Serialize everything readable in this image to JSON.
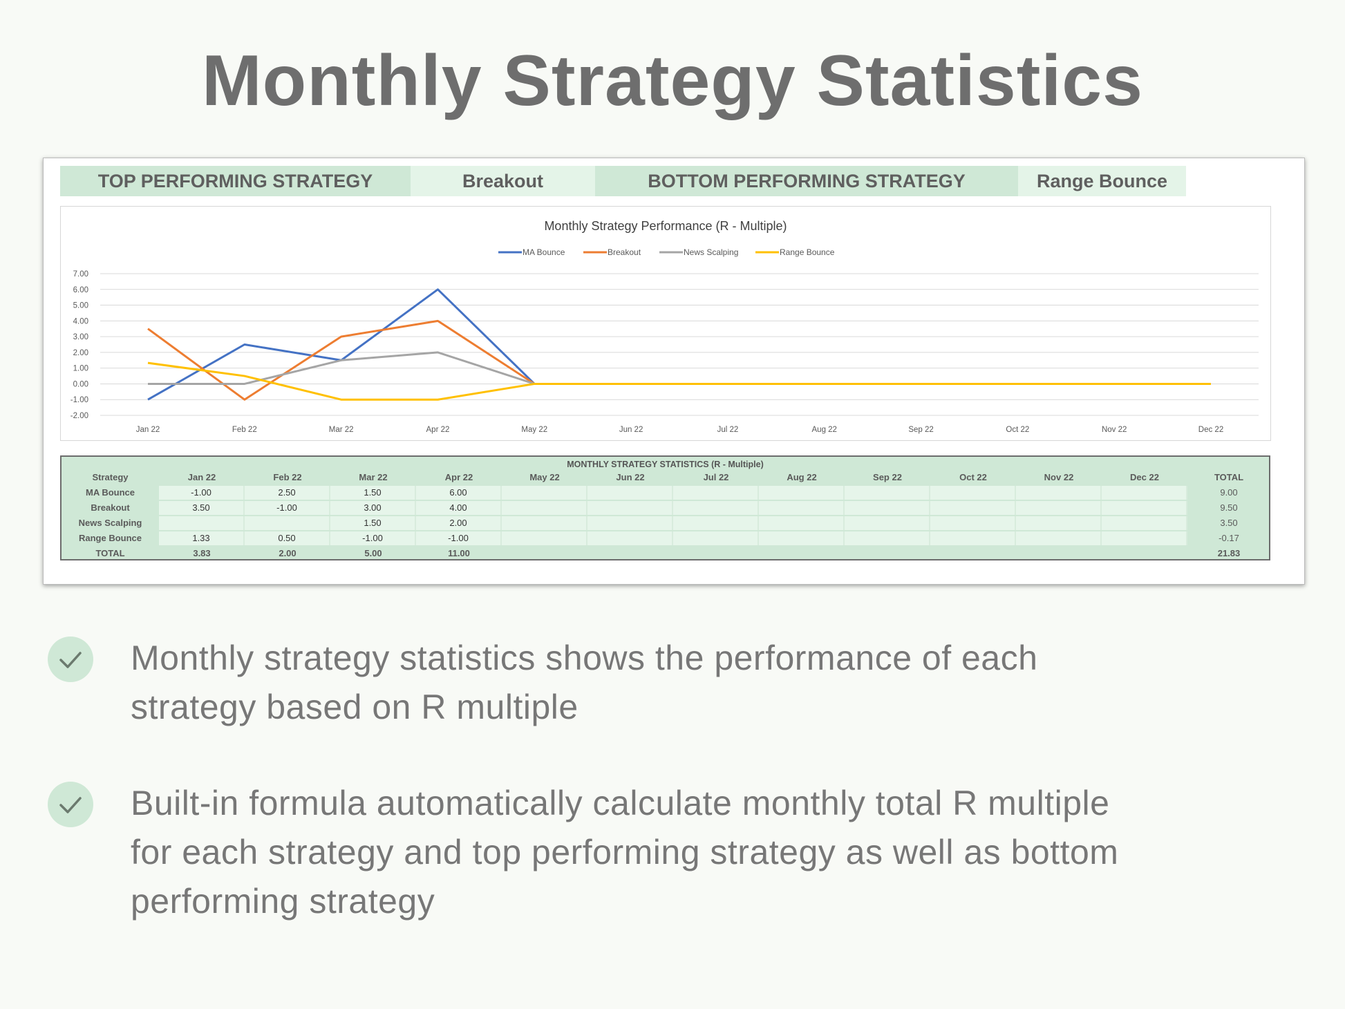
{
  "page_title": "Monthly Strategy Statistics",
  "summary": {
    "top_label": "TOP PERFORMING STRATEGY",
    "top_value": "Breakout",
    "bottom_label": "BOTTOM PERFORMING STRATEGY",
    "bottom_value": "Range Bounce"
  },
  "chart_data": {
    "type": "line",
    "title": "Monthly Strategy Performance (R - Multiple)",
    "categories": [
      "Jan 22",
      "Feb 22",
      "Mar 22",
      "Apr 22",
      "May 22",
      "Jun 22",
      "Jul 22",
      "Aug 22",
      "Sep 22",
      "Oct 22",
      "Nov 22",
      "Dec 22"
    ],
    "ylim": [
      -2,
      7
    ],
    "yticks": [
      "7.00",
      "6.00",
      "5.00",
      "4.00",
      "3.00",
      "2.00",
      "1.00",
      "0.00",
      "-1.00",
      "-2.00"
    ],
    "legend_position": "top",
    "grid": true,
    "series": [
      {
        "name": "MA Bounce",
        "color": "#4472c4",
        "values": [
          -1,
          2.5,
          1.5,
          6,
          0,
          0,
          0,
          0,
          0,
          0,
          0,
          0
        ]
      },
      {
        "name": "Breakout",
        "color": "#ed7d31",
        "values": [
          3.5,
          -1,
          3,
          4,
          0,
          0,
          0,
          0,
          0,
          0,
          0,
          0
        ]
      },
      {
        "name": "News Scalping",
        "color": "#a5a5a5",
        "values": [
          0,
          0,
          1.5,
          2,
          0,
          0,
          0,
          0,
          0,
          0,
          0,
          0
        ]
      },
      {
        "name": "Range Bounce",
        "color": "#ffc000",
        "values": [
          1.33,
          0.5,
          -1,
          -1,
          0,
          0,
          0,
          0,
          0,
          0,
          0,
          0
        ]
      }
    ]
  },
  "table": {
    "title": "MONTHLY STRATEGY STATISTICS (R - Multiple)",
    "header": [
      "Strategy",
      "Jan 22",
      "Feb 22",
      "Mar 22",
      "Apr 22",
      "May 22",
      "Jun 22",
      "Jul 22",
      "Aug 22",
      "Sep 22",
      "Oct 22",
      "Nov 22",
      "Dec 22",
      "TOTAL"
    ],
    "rows": [
      [
        "MA Bounce",
        "-1.00",
        "2.50",
        "1.50",
        "6.00",
        "",
        "",
        "",
        "",
        "",
        "",
        "",
        "",
        "9.00"
      ],
      [
        "Breakout",
        "3.50",
        "-1.00",
        "3.00",
        "4.00",
        "",
        "",
        "",
        "",
        "",
        "",
        "",
        "",
        "9.50"
      ],
      [
        "News Scalping",
        "",
        "",
        "1.50",
        "2.00",
        "",
        "",
        "",
        "",
        "",
        "",
        "",
        "",
        "3.50"
      ],
      [
        "Range Bounce",
        "1.33",
        "0.50",
        "-1.00",
        "-1.00",
        "",
        "",
        "",
        "",
        "",
        "",
        "",
        "",
        "-0.17"
      ]
    ],
    "total_row": [
      "TOTAL",
      "3.83",
      "2.00",
      "5.00",
      "11.00",
      "",
      "",
      "",
      "",
      "",
      "",
      "",
      "",
      "21.83"
    ]
  },
  "bullets": [
    {
      "icon": "check-icon",
      "lines": [
        "Monthly strategy statistics shows the performance of each",
        "strategy based on R multiple"
      ]
    },
    {
      "icon": "check-icon",
      "lines": [
        "Built-in formula automatically calculate monthly total R multiple",
        "for each strategy and top performing strategy as well as bottom",
        "performing strategy"
      ]
    }
  ]
}
